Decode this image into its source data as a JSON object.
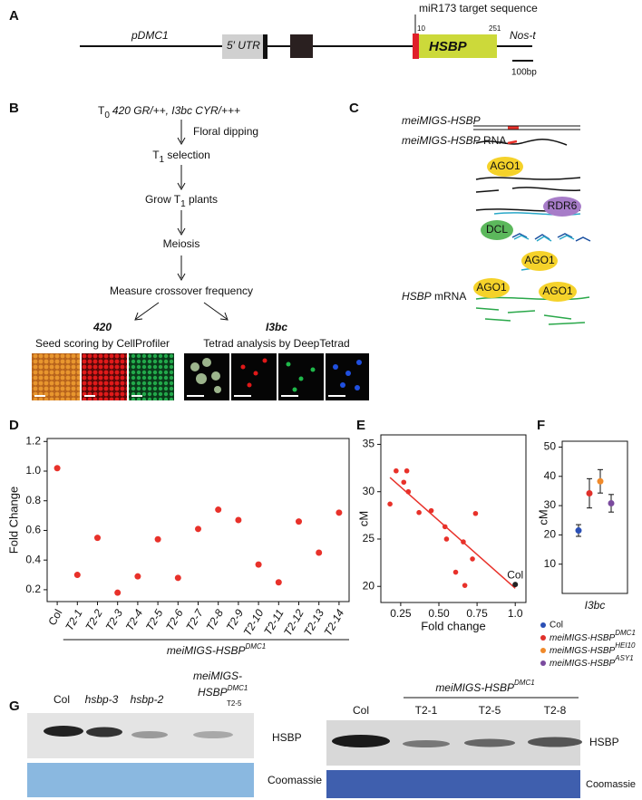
{
  "panel_labels": [
    "A",
    "B",
    "C",
    "D",
    "E",
    "F",
    "G"
  ],
  "construct": {
    "target_label": "miR173 target sequence",
    "promoter": "pDMC1",
    "utr": "5′ UTR",
    "start": "10",
    "end": "251",
    "gene": "HSBP",
    "terminator": "Nos-t",
    "scale": "100bp"
  },
  "workflow": {
    "t0": [
      "T",
      "0"
    ],
    "t0_genotype": "420 GR/++, I3bc CYR/+++",
    "dip": "Floral dipping",
    "t1_selection": [
      "T",
      "1",
      " selection"
    ],
    "grow": [
      "Grow T",
      "1",
      " plants"
    ],
    "meiosis": "Meiosis",
    "measure": "Measure crossover frequency",
    "left_title": "420",
    "left_caption": "Seed scoring by CellProfiler",
    "right_title": "I3bc",
    "right_caption": "Tetrad analysis by DeepTetrad"
  },
  "mechanism": {
    "construct": "meiMIGS-HSBP",
    "rna": [
      "meiMIGS-HSBP",
      " RNA"
    ],
    "ago1": [
      "AGO1",
      "AGO1",
      "AGO1",
      "AGO1"
    ],
    "rdr6": "RDR6",
    "dcl": "DCL",
    "mrna": [
      "HSBP",
      " mRNA"
    ]
  },
  "chart_data": [
    {
      "type": "dot",
      "ylabel": "Fold Change",
      "categories": [
        "Col",
        "T2-1",
        "T2-2",
        "T2-3",
        "T2-4",
        "T2-5",
        "T2-6",
        "T2-7",
        "T2-8",
        "T2-9",
        "T2-10",
        "T2-11",
        "T2-12",
        "T2-13",
        "T2-14"
      ],
      "values": [
        1.02,
        0.3,
        0.55,
        0.18,
        0.29,
        0.54,
        0.28,
        0.61,
        0.74,
        0.67,
        0.37,
        0.25,
        0.66,
        0.45,
        0.72
      ],
      "color": "#e8312a",
      "group_label": "meiMIGS-HSBP",
      "group_label_sup": "DMC1",
      "ylim": [
        0.12,
        1.22
      ],
      "yticks": [
        0.2,
        0.4,
        0.6,
        0.8,
        {
          "value": 1,
          "label": "1.0"
        },
        1.2
      ]
    },
    {
      "type": "scatter",
      "xlabel": "Fold change",
      "ylabel": "cM",
      "x": [
        0.18,
        0.22,
        0.27,
        0.29,
        0.3,
        0.37,
        0.45,
        0.54,
        0.55,
        0.61,
        0.66,
        0.67,
        0.72,
        0.74
      ],
      "y": [
        28.7,
        32.2,
        31.0,
        32.2,
        30.0,
        27.8,
        28.0,
        26.3,
        25.0,
        21.5,
        24.7,
        20.1,
        22.9,
        27.7
      ],
      "color": "#e8312a",
      "highlight": {
        "label": "Col",
        "x": 1.0,
        "y": 20.2,
        "color": "#222222"
      },
      "fit": {
        "x": [
          0.18,
          1.0
        ],
        "y": [
          31.5,
          19.8
        ],
        "color": "#e8312a"
      },
      "xlim": [
        0.12,
        1.07
      ],
      "ylim": [
        18.3,
        36
      ],
      "xticks": [
        0.25,
        {
          "value": 0.5,
          "label": "0.50"
        },
        0.75,
        {
          "value": 1,
          "label": "1.0"
        }
      ],
      "yticks": [
        20,
        25,
        30,
        35
      ]
    },
    {
      "type": "dot",
      "category": "I3bc",
      "ylabel": "cM",
      "series": [
        {
          "name": "Col",
          "color": "#2a4fb5",
          "values": [
            21.5
          ],
          "errors": [
            2
          ]
        },
        {
          "name": "meiMIGS-HSBP",
          "superscript": "DMC1",
          "color": "#e0302a",
          "values": [
            34.2
          ],
          "errors": [
            5
          ]
        },
        {
          "name": "meiMIGS-HSBP",
          "superscript": "HEI10",
          "color": "#f08a2a",
          "values": [
            38.3
          ],
          "errors": [
            4
          ]
        },
        {
          "name": "meiMIGS-HSBP",
          "superscript": "ASY1",
          "color": "#7a4a9e",
          "values": [
            30.8
          ],
          "errors": [
            3
          ]
        }
      ],
      "ylim": [
        0,
        52
      ],
      "yticks": [
        10,
        20,
        30,
        40,
        50
      ]
    }
  ],
  "western": {
    "left": {
      "lanes": [
        "Col",
        "hsbp-3",
        "hsbp-2"
      ],
      "lane4": [
        "meiMIGS-",
        "HSBP",
        "DMC1",
        "T2-5"
      ],
      "protein": "HSBP",
      "loading": "Coomassie"
    },
    "right": {
      "group": "meiMIGS-HSBP",
      "group_sup": "DMC1",
      "lanes": [
        "Col",
        "T2-1",
        "T2-5",
        "T2-8"
      ],
      "protein": "HSBP",
      "loading": "Coomassie"
    }
  }
}
